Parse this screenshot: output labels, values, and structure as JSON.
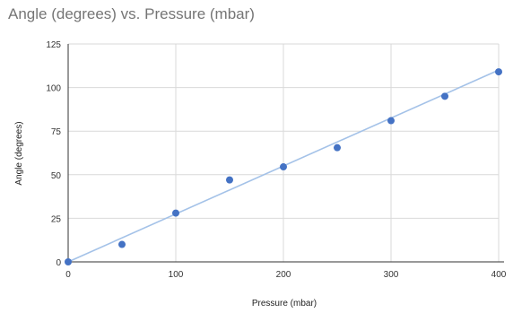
{
  "chart_data": {
    "type": "scatter",
    "title": "Angle (degrees) vs. Pressure (mbar)",
    "xlabel": "Pressure (mbar)",
    "ylabel": "Angle (degrees)",
    "xlim": [
      0,
      400
    ],
    "ylim": [
      0,
      125
    ],
    "xticks": [
      "0",
      "100",
      "200",
      "300",
      "400"
    ],
    "yticks": [
      "0",
      "25",
      "50",
      "75",
      "100",
      "125"
    ],
    "grid": true,
    "series": [
      {
        "points": [
          {
            "x": 0,
            "y": 0
          },
          {
            "x": 50,
            "y": 10
          },
          {
            "x": 100,
            "y": 28
          },
          {
            "x": 150,
            "y": 47
          },
          {
            "x": 200,
            "y": 54.5
          },
          {
            "x": 250,
            "y": 65.5
          },
          {
            "x": 300,
            "y": 81
          },
          {
            "x": 350,
            "y": 95
          },
          {
            "x": 400,
            "y": 109
          }
        ],
        "color": "#4472c4"
      }
    ],
    "trendline": {
      "color": "#a4c2e8",
      "from": {
        "x": 0,
        "y": 0
      },
      "to": {
        "x": 400,
        "y": 110
      }
    }
  }
}
